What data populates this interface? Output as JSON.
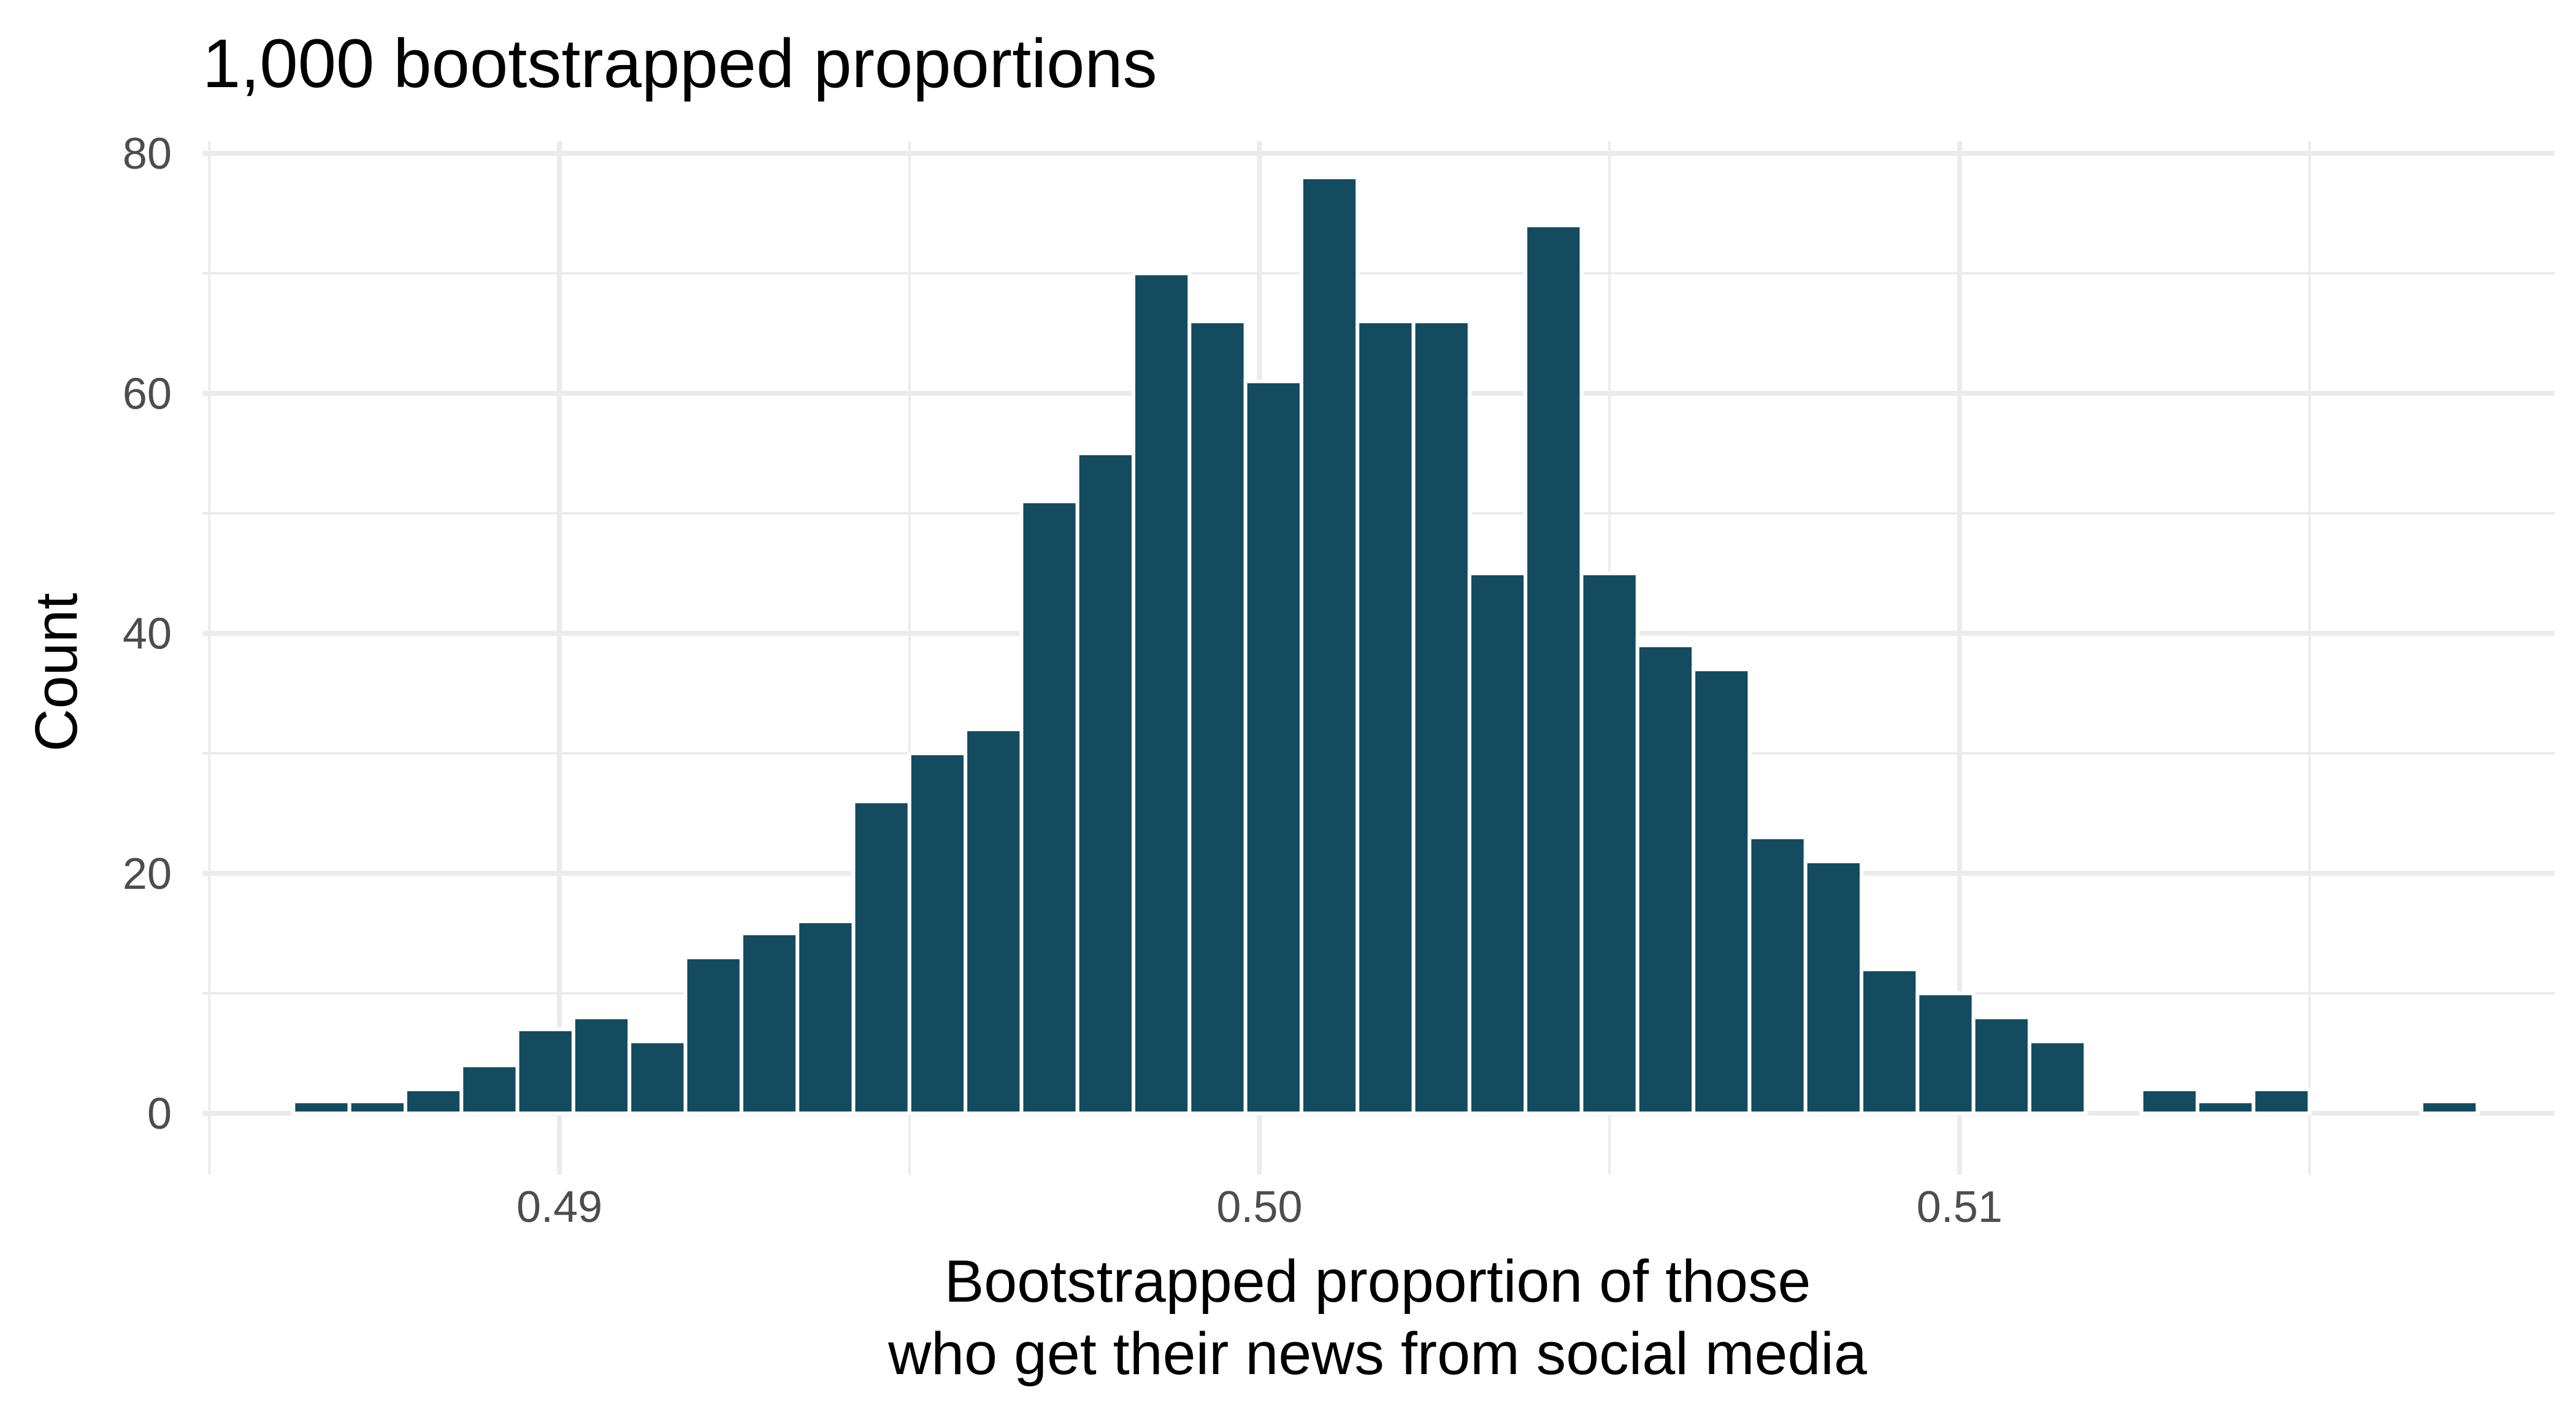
{
  "chart_data": {
    "type": "bar",
    "title": "1,000 bootstrapped proportions",
    "xlabel_lines": [
      "Bootstrapped proportion of those",
      "who get their news from social media"
    ],
    "ylabel": "Count",
    "bar_color": "#134b5f",
    "grid_color": "#ebebeb",
    "xlim": [
      0.4849,
      0.5185
    ],
    "ylim": [
      0,
      80
    ],
    "x_ticks": [
      0.49,
      0.5,
      0.51
    ],
    "x_tick_labels": [
      "0.49",
      "0.50",
      "0.51"
    ],
    "y_ticks": [
      0,
      20,
      40,
      60,
      80
    ],
    "y_tick_labels": [
      "0",
      "20",
      "40",
      "60",
      "80"
    ],
    "bin_width": 0.0008,
    "x": [
      0.4866,
      0.4874,
      0.4882,
      0.489,
      0.4898,
      0.4906,
      0.4914,
      0.4922,
      0.493,
      0.4938,
      0.4946,
      0.4954,
      0.4962,
      0.497,
      0.4978,
      0.4986,
      0.4994,
      0.5002,
      0.501,
      0.5018,
      0.5026,
      0.5034,
      0.5042,
      0.505,
      0.5058,
      0.5066,
      0.5074,
      0.5082,
      0.509,
      0.5098,
      0.5106,
      0.5114,
      0.5122,
      0.513,
      0.5138,
      0.5146,
      0.5154,
      0.5162,
      0.517
    ],
    "values": [
      1,
      1,
      2,
      4,
      7,
      8,
      6,
      13,
      15,
      16,
      26,
      30,
      32,
      51,
      55,
      70,
      66,
      61,
      78,
      66,
      66,
      45,
      74,
      45,
      39,
      37,
      23,
      21,
      12,
      10,
      8,
      6,
      0,
      2,
      1,
      2,
      0,
      0,
      1
    ]
  }
}
